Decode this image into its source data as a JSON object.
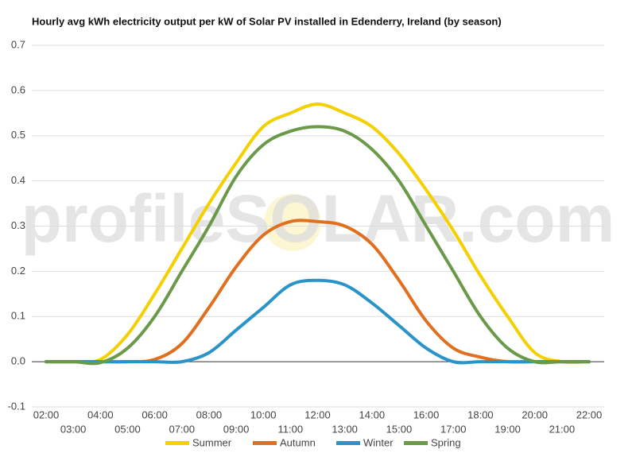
{
  "chart_data": {
    "type": "line",
    "title": "Hourly avg kWh electricity output per kW of Solar PV installed in Edenderry, Ireland (by season)",
    "watermark": "profileSOLAR.com",
    "categories": [
      "02:00",
      "03:00",
      "04:00",
      "05:00",
      "06:00",
      "07:00",
      "08:00",
      "09:00",
      "10:00",
      "11:00",
      "12:00",
      "13:00",
      "14:00",
      "15:00",
      "16:00",
      "17:00",
      "18:00",
      "19:00",
      "20:00",
      "21:00",
      "22:00"
    ],
    "series": [
      {
        "name": "Summer",
        "color": "#f5d000",
        "values": [
          0,
          0,
          0.005,
          0.06,
          0.15,
          0.25,
          0.35,
          0.44,
          0.52,
          0.55,
          0.57,
          0.55,
          0.52,
          0.46,
          0.38,
          0.29,
          0.19,
          0.1,
          0.02,
          0,
          0
        ]
      },
      {
        "name": "Autumn",
        "color": "#e0701f",
        "values": [
          0,
          0,
          0,
          0,
          0.005,
          0.04,
          0.12,
          0.21,
          0.28,
          0.31,
          0.31,
          0.3,
          0.26,
          0.18,
          0.09,
          0.03,
          0.01,
          0,
          0,
          0,
          0
        ]
      },
      {
        "name": "Winter",
        "color": "#2a93c8",
        "values": [
          0,
          0,
          0,
          0,
          0,
          0,
          0.02,
          0.07,
          0.12,
          0.17,
          0.18,
          0.17,
          0.13,
          0.08,
          0.03,
          0,
          0,
          0,
          0,
          0,
          0
        ]
      },
      {
        "name": "Spring",
        "color": "#6a9a48",
        "values": [
          0,
          0,
          -0.002,
          0.03,
          0.1,
          0.2,
          0.3,
          0.41,
          0.48,
          0.51,
          0.52,
          0.51,
          0.47,
          0.4,
          0.3,
          0.2,
          0.1,
          0.03,
          0,
          0,
          0
        ]
      }
    ],
    "ylim": [
      -0.1,
      0.7
    ],
    "yticks": [
      -0.1,
      {
        "value": 0,
        "label": "0.0"
      },
      0.1,
      0.2,
      0.3,
      0.4,
      0.5,
      0.6,
      0.7
    ],
    "grid": true,
    "legend": "bottom"
  }
}
